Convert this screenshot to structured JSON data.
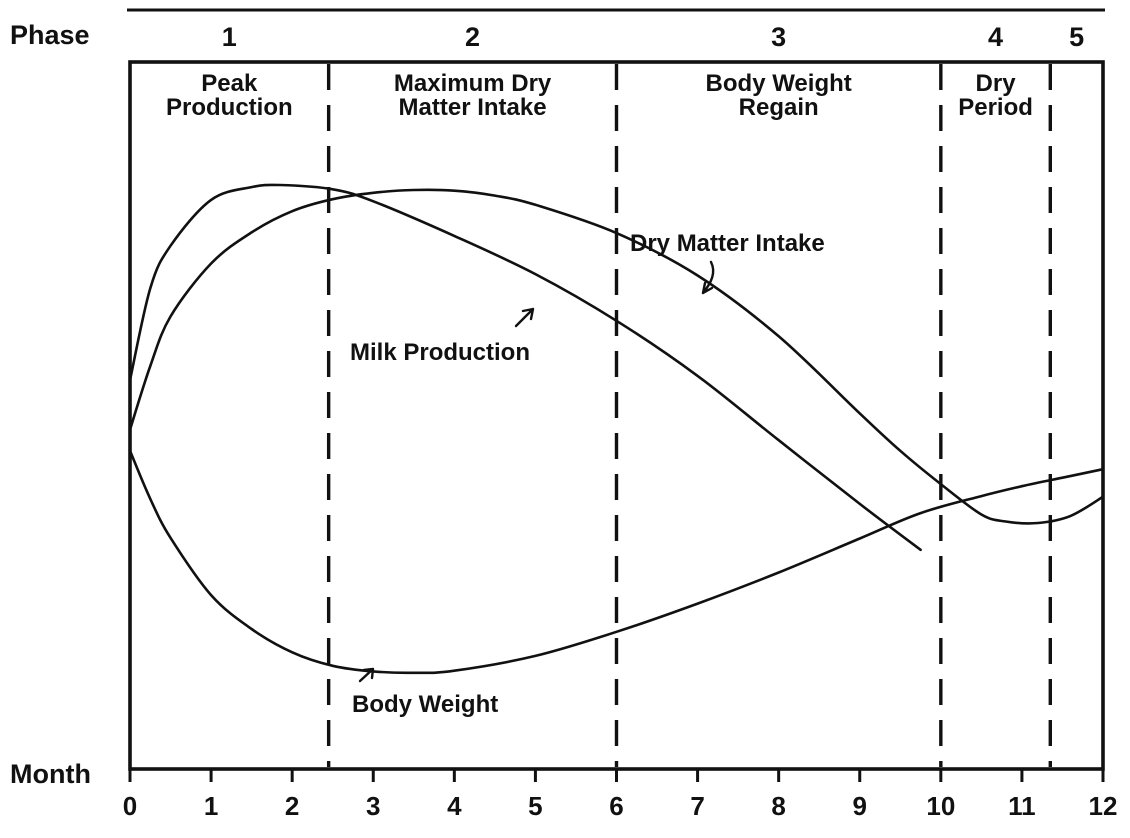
{
  "chart_data": {
    "type": "line",
    "xlabel": "Month",
    "header_label": "Phase",
    "xlim": [
      0,
      12
    ],
    "ylim": [
      0,
      100
    ],
    "xticks": [
      0,
      1,
      2,
      3,
      4,
      5,
      6,
      7,
      8,
      9,
      10,
      11,
      12
    ],
    "phases": [
      {
        "number": "1",
        "name_line1": "Peak",
        "name_line2": "Production",
        "start": 0,
        "end": 2.45
      },
      {
        "number": "2",
        "name_line1": "Maximum Dry",
        "name_line2": "Matter Intake",
        "start": 2.45,
        "end": 6.0
      },
      {
        "number": "3",
        "name_line1": "Body Weight",
        "name_line2": "Regain",
        "start": 6.0,
        "end": 10.0
      },
      {
        "number": "4",
        "name_line1": "Dry",
        "name_line2": "Period",
        "start": 10.0,
        "end": 11.35
      },
      {
        "number": "5",
        "name_line1": "",
        "name_line2": "",
        "start": 11.35,
        "end": 12.0
      }
    ],
    "boundaries": [
      2.45,
      6.0,
      10.0,
      11.35
    ],
    "series": [
      {
        "name": "Milk Production",
        "x": [
          0,
          0.25,
          0.5,
          1.0,
          1.5,
          1.85,
          2.5,
          3.0,
          4.0,
          5.0,
          6.0,
          7.0,
          8.0,
          9.0,
          9.75
        ],
        "y": [
          55,
          68,
          74,
          80.5,
          82.3,
          82.6,
          82,
          80.3,
          75.4,
          70,
          63.4,
          55.6,
          46.5,
          37.5,
          31
        ]
      },
      {
        "name": "Dry Matter Intake",
        "x": [
          0,
          0.25,
          0.5,
          1.0,
          1.5,
          2.0,
          2.5,
          3.0,
          3.5,
          4.0,
          4.5,
          5.0,
          6.0,
          7.0,
          8.0,
          9.0,
          9.5,
          10.0,
          10.5,
          10.8,
          11.2,
          11.6,
          12.0
        ],
        "y": [
          48,
          57,
          64,
          71.5,
          75.9,
          78.9,
          80.6,
          81.5,
          81.9,
          81.8,
          81.1,
          79.8,
          75.8,
          69.8,
          61.2,
          50.3,
          45,
          40.3,
          36,
          35,
          34.8,
          35.8,
          38.5
        ]
      },
      {
        "name": "Body Weight",
        "x": [
          0,
          0.25,
          0.5,
          1.0,
          1.5,
          2.0,
          2.5,
          3.0,
          3.5,
          4.0,
          5.0,
          6.0,
          7.0,
          8.0,
          9.0,
          9.75,
          10.5,
          11.0,
          11.5,
          12.0
        ],
        "y": [
          45,
          38.2,
          32.7,
          24.6,
          19.8,
          16.5,
          14.6,
          13.8,
          13.6,
          13.9,
          16,
          19.4,
          23.4,
          27.8,
          32.6,
          36.2,
          38.6,
          40,
          41.2,
          42.4
        ]
      }
    ],
    "annotations": [
      {
        "text": "Dry Matter Intake",
        "series": "Dry Matter Intake"
      },
      {
        "text": "Milk Production",
        "series": "Milk Production"
      },
      {
        "text": "Body Weight",
        "series": "Body Weight"
      }
    ]
  }
}
